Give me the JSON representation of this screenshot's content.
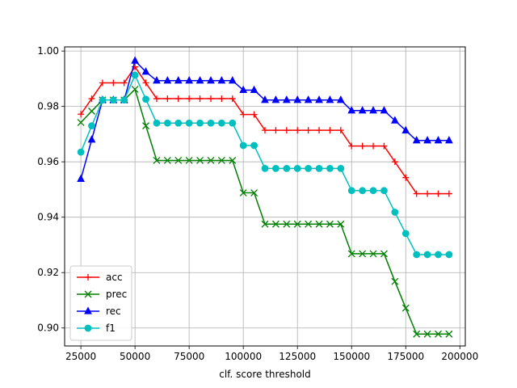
{
  "chart_data": {
    "type": "line",
    "title": "",
    "xlabel": "clf. score threshold",
    "ylabel": "",
    "xlim": [
      17500,
      202500
    ],
    "ylim": [
      0.8935,
      1.0015
    ],
    "xticks": [
      25000,
      50000,
      75000,
      100000,
      125000,
      150000,
      175000,
      200000
    ],
    "xtick_labels": [
      "25000",
      "50000",
      "75000",
      "100000",
      "125000",
      "150000",
      "175000",
      "200000"
    ],
    "yticks": [
      0.9,
      0.92,
      0.94,
      0.96,
      0.98,
      1.0
    ],
    "ytick_labels": [
      "0.90",
      "0.92",
      "0.94",
      "0.96",
      "0.98",
      "1.00"
    ],
    "grid": true,
    "legend_position": "lower-left",
    "x": [
      25000,
      30000,
      35000,
      40000,
      45000,
      50000,
      55000,
      60000,
      65000,
      70000,
      75000,
      80000,
      85000,
      90000,
      95000,
      100000,
      105000,
      110000,
      115000,
      120000,
      125000,
      130000,
      135000,
      140000,
      145000,
      150000,
      155000,
      160000,
      165000,
      170000,
      175000,
      180000,
      185000,
      190000,
      195000
    ],
    "series": [
      {
        "name": "acc",
        "color": "#ff0000",
        "marker": "plus",
        "values": [
          0.9772,
          0.9828,
          0.9885,
          0.9885,
          0.9885,
          0.9943,
          0.9885,
          0.9828,
          0.9828,
          0.9828,
          0.9828,
          0.9828,
          0.9828,
          0.9828,
          0.9828,
          0.9771,
          0.9771,
          0.9714,
          0.9714,
          0.9714,
          0.9714,
          0.9714,
          0.9714,
          0.9714,
          0.9714,
          0.9657,
          0.9657,
          0.9657,
          0.9657,
          0.96,
          0.9543,
          0.9485,
          0.9485,
          0.9485,
          0.9485
        ]
      },
      {
        "name": "prec",
        "color": "#008000",
        "marker": "x",
        "values": [
          0.9742,
          0.9783,
          0.9823,
          0.9823,
          0.9823,
          0.9862,
          0.973,
          0.9605,
          0.9605,
          0.9605,
          0.9605,
          0.9605,
          0.9605,
          0.9605,
          0.9605,
          0.9488,
          0.9488,
          0.9375,
          0.9375,
          0.9375,
          0.9375,
          0.9375,
          0.9375,
          0.9375,
          0.9375,
          0.9268,
          0.9268,
          0.9268,
          0.9268,
          0.9168,
          0.9072,
          0.8978,
          0.8978,
          0.8978,
          0.8978
        ]
      },
      {
        "name": "rec",
        "color": "#0000ff",
        "marker": "triangle",
        "values": [
          0.9538,
          0.968,
          0.9823,
          0.9823,
          0.9823,
          0.9965,
          0.9925,
          0.9893,
          0.9893,
          0.9893,
          0.9893,
          0.9893,
          0.9893,
          0.9893,
          0.9893,
          0.9859,
          0.9859,
          0.9823,
          0.9823,
          0.9823,
          0.9823,
          0.9823,
          0.9823,
          0.9823,
          0.9823,
          0.9785,
          0.9785,
          0.9785,
          0.9785,
          0.9749,
          0.9713,
          0.9677,
          0.9677,
          0.9677,
          0.9677
        ]
      },
      {
        "name": "f1",
        "color": "#00bfbf",
        "marker": "circle",
        "values": [
          0.9635,
          0.973,
          0.9823,
          0.9823,
          0.9823,
          0.9913,
          0.9826,
          0.974,
          0.974,
          0.974,
          0.974,
          0.974,
          0.974,
          0.974,
          0.974,
          0.9659,
          0.9659,
          0.9576,
          0.9576,
          0.9576,
          0.9576,
          0.9576,
          0.9576,
          0.9576,
          0.9576,
          0.9496,
          0.9496,
          0.9496,
          0.9496,
          0.9418,
          0.9341,
          0.9265,
          0.9265,
          0.9265,
          0.9265
        ]
      }
    ]
  }
}
